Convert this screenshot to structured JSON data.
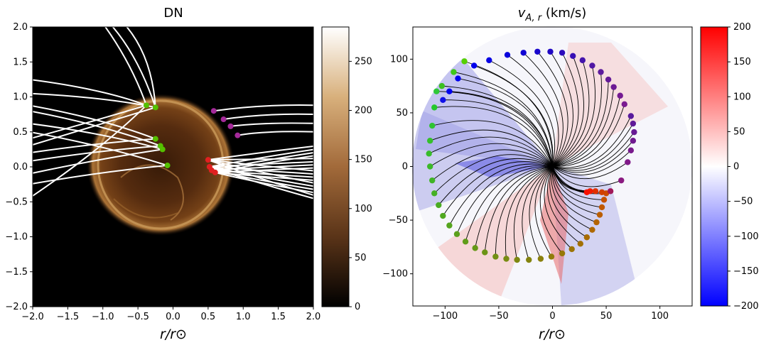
{
  "chart_data": [
    {
      "type": "image",
      "title": "DN",
      "xlabel": "r/r⊙",
      "ylabel": "",
      "xlim": [
        -2.0,
        2.0
      ],
      "ylim": [
        -2.0,
        2.0
      ],
      "xticks": [
        "−2.0",
        "−1.5",
        "−1.0",
        "−0.5",
        "0.0",
        "0.5",
        "1.0",
        "1.5",
        "2.0"
      ],
      "yticks": [
        "−2.0",
        "−1.5",
        "−1.0",
        "−0.5",
        "0.0",
        "0.5",
        "1.0",
        "1.5",
        "2.0"
      ],
      "colorbar": {
        "colormap": "copper",
        "range": [
          0,
          285
        ],
        "ticks": [
          0,
          50,
          100,
          150,
          200,
          250
        ],
        "tick_labels": [
          "0",
          "50",
          "100",
          "150",
          "200",
          "250"
        ]
      },
      "limb_radius": 1.0,
      "footpoint_groups": [
        {
          "name": "green",
          "color": "#55c000",
          "points": [
            [
              -0.38,
              0.88
            ],
            [
              -0.25,
              0.85
            ],
            [
              -0.25,
              0.4
            ],
            [
              -0.18,
              0.3
            ],
            [
              -0.15,
              0.25
            ],
            [
              -0.08,
              0.02
            ]
          ]
        },
        {
          "name": "magenta",
          "color": "#a52a9a",
          "points": [
            [
              0.58,
              0.8
            ],
            [
              0.72,
              0.68
            ],
            [
              0.82,
              0.58
            ],
            [
              0.92,
              0.45
            ]
          ]
        },
        {
          "name": "red",
          "color": "#e02020",
          "points": [
            [
              0.5,
              0.1
            ],
            [
              0.52,
              0.0
            ],
            [
              0.55,
              -0.05
            ],
            [
              0.6,
              -0.08
            ]
          ]
        }
      ]
    },
    {
      "type": "scatter",
      "title": "v_A,r (km/s)",
      "xlabel": "r/r⊙",
      "ylabel": "",
      "xlim": [
        -130,
        130
      ],
      "ylim": [
        -130,
        130
      ],
      "xticks": [
        "−100",
        "−50",
        "0",
        "50",
        "100"
      ],
      "yticks": [
        "−100",
        "−50",
        "0",
        "50",
        "100"
      ],
      "colorbar": {
        "colormap": "bwr",
        "range": [
          -200,
          200
        ],
        "ticks": [
          -200,
          -150,
          -100,
          -50,
          0,
          50,
          100,
          150,
          200
        ],
        "tick_labels": [
          "−200",
          "−150",
          "−100",
          "−50",
          "0",
          "50",
          "100",
          "150",
          "200"
        ]
      },
      "disk_radius": 128,
      "footpoints": [
        {
          "x": -82,
          "y": 98,
          "color": "#55d000"
        },
        {
          "x": -92,
          "y": 88,
          "color": "#40c818"
        },
        {
          "x": -103,
          "y": 75,
          "color": "#3ac020"
        },
        {
          "x": -108,
          "y": 70,
          "color": "#2ec838"
        },
        {
          "x": -110,
          "y": 55,
          "color": "#25c82c"
        },
        {
          "x": -112,
          "y": 38,
          "color": "#2ec430"
        },
        {
          "x": -114,
          "y": 24,
          "color": "#35c02a"
        },
        {
          "x": -115,
          "y": 12,
          "color": "#38bc2a"
        },
        {
          "x": -114,
          "y": 0,
          "color": "#3cb828"
        },
        {
          "x": -112,
          "y": -13,
          "color": "#40b426"
        },
        {
          "x": -110,
          "y": -25,
          "color": "#45b024"
        },
        {
          "x": -106,
          "y": -36,
          "color": "#4aac22"
        },
        {
          "x": -102,
          "y": -46,
          "color": "#50a820"
        },
        {
          "x": -96,
          "y": -55,
          "color": "#55a41e"
        },
        {
          "x": -89,
          "y": -63,
          "color": "#5aa01c"
        },
        {
          "x": -81,
          "y": -70,
          "color": "#609c1a"
        },
        {
          "x": -72,
          "y": -76,
          "color": "#669818"
        },
        {
          "x": -63,
          "y": -80,
          "color": "#6c9416"
        },
        {
          "x": -53,
          "y": -84,
          "color": "#729014"
        },
        {
          "x": -43,
          "y": -86,
          "color": "#788c12"
        },
        {
          "x": -33,
          "y": -87,
          "color": "#7e8810"
        },
        {
          "x": -22,
          "y": -87,
          "color": "#84840e"
        },
        {
          "x": -11,
          "y": -86,
          "color": "#8a800c"
        },
        {
          "x": -1,
          "y": -84,
          "color": "#907c0a"
        },
        {
          "x": 9,
          "y": -81,
          "color": "#967808"
        },
        {
          "x": 18,
          "y": -77,
          "color": "#9c7406"
        },
        {
          "x": 26,
          "y": -72,
          "color": "#a27004"
        },
        {
          "x": 32,
          "y": -66,
          "color": "#a86c02"
        },
        {
          "x": 37,
          "y": -59,
          "color": "#ae6800"
        },
        {
          "x": 41,
          "y": -52,
          "color": "#b46400"
        },
        {
          "x": 44,
          "y": -45,
          "color": "#ba5e00"
        },
        {
          "x": 46,
          "y": -38,
          "color": "#c05800"
        },
        {
          "x": 48,
          "y": -31,
          "color": "#c65200"
        },
        {
          "x": 50,
          "y": -25,
          "color": "#cc4a00"
        },
        {
          "x": 46,
          "y": -24,
          "color": "#d24000"
        },
        {
          "x": 40,
          "y": -23,
          "color": "#e03000"
        },
        {
          "x": 35,
          "y": -23,
          "color": "#ee1c00"
        },
        {
          "x": 32,
          "y": -24,
          "color": "#f81000"
        },
        {
          "x": 54,
          "y": -23,
          "color": "#a01858"
        },
        {
          "x": 64,
          "y": -13,
          "color": "#8a1a80"
        },
        {
          "x": 70,
          "y": 4,
          "color": "#801a88"
        },
        {
          "x": 73,
          "y": 15,
          "color": "#781a8c"
        },
        {
          "x": 75,
          "y": 24,
          "color": "#701a90"
        },
        {
          "x": 76,
          "y": 32,
          "color": "#681a94"
        },
        {
          "x": 75,
          "y": 40,
          "color": "#601a98"
        },
        {
          "x": 73,
          "y": 47,
          "color": "#581a9c"
        },
        {
          "x": 67,
          "y": 58,
          "color": "#7a1a90"
        },
        {
          "x": 63,
          "y": 66,
          "color": "#741a92"
        },
        {
          "x": 57,
          "y": 74,
          "color": "#6c1a94"
        },
        {
          "x": 52,
          "y": 81,
          "color": "#641a98"
        },
        {
          "x": 45,
          "y": 88,
          "color": "#5c1a9c"
        },
        {
          "x": 37,
          "y": 94,
          "color": "#5018a4"
        },
        {
          "x": 28,
          "y": 99,
          "color": "#4414ac"
        },
        {
          "x": 19,
          "y": 103,
          "color": "#3810b4"
        },
        {
          "x": 9,
          "y": 106,
          "color": "#2c0cbc"
        },
        {
          "x": -2,
          "y": 107,
          "color": "#2008c4"
        },
        {
          "x": -14,
          "y": 107,
          "color": "#1806cc"
        },
        {
          "x": -27,
          "y": 106,
          "color": "#1004d4"
        },
        {
          "x": -42,
          "y": 104,
          "color": "#0a02dc"
        },
        {
          "x": -59,
          "y": 99,
          "color": "#0600e4"
        },
        {
          "x": -73,
          "y": 94,
          "color": "#0200ec"
        },
        {
          "x": -88,
          "y": 82,
          "color": "#0000ee"
        },
        {
          "x": -96,
          "y": 70,
          "color": "#0000f0"
        },
        {
          "x": -102,
          "y": 62,
          "color": "#1010e8"
        }
      ]
    }
  ]
}
